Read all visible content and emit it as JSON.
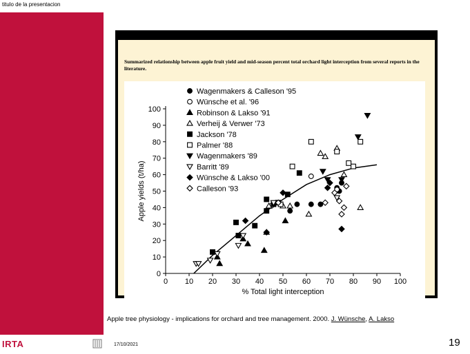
{
  "slide": {
    "header_title": "titulo de la presentacion",
    "brand": "IRTA",
    "date": "17/10/2021",
    "page_number": "19",
    "accent_color": "#c0113c"
  },
  "figure": {
    "caption": "Summarized relationship between apple fruit yield and mid-season percent total orchard light interception from several reports in the literature."
  },
  "citation": {
    "text": "Apple tree physiology - implications for orchard and tree management. 2000.",
    "author1": "J. Wünsche",
    "separator": ",",
    "author2": "A. Lakso"
  },
  "chart_data": {
    "type": "scatter",
    "xlabel": "% Total light interception",
    "ylabel": "Apple yields (t/ha)",
    "xlim": [
      0,
      100
    ],
    "ylim": [
      0,
      100
    ],
    "xticks": [
      0,
      10,
      20,
      30,
      40,
      50,
      60,
      70,
      80,
      90,
      100
    ],
    "yticks": [
      0,
      10,
      20,
      30,
      40,
      50,
      60,
      70,
      80,
      90,
      100
    ],
    "grid": false,
    "legend_position": "top-left",
    "series": [
      {
        "name": "Wagenmakers & Calleson '95",
        "marker": "circle-filled",
        "points": [
          [
            47,
            43
          ],
          [
            53,
            38
          ],
          [
            56,
            42
          ],
          [
            62,
            42
          ],
          [
            66,
            42
          ],
          [
            75,
            55
          ],
          [
            73,
            52
          ],
          [
            74,
            50
          ]
        ]
      },
      {
        "name": "Wünsche et al. '96",
        "marker": "circle-open",
        "points": [
          [
            45,
            41
          ],
          [
            62,
            59
          ],
          [
            73,
            51
          ]
        ]
      },
      {
        "name": "Robinson & Lakso '91",
        "marker": "triangle-filled",
        "points": [
          [
            22,
            10
          ],
          [
            23,
            6
          ],
          [
            33,
            21
          ],
          [
            35,
            18
          ],
          [
            42,
            14
          ],
          [
            43,
            25
          ],
          [
            51,
            32
          ]
        ]
      },
      {
        "name": "Verheij & Verwer '73",
        "marker": "triangle-open",
        "points": [
          [
            44,
            41
          ],
          [
            50,
            41
          ],
          [
            53,
            41
          ],
          [
            61,
            36
          ],
          [
            66,
            73
          ],
          [
            68,
            71
          ],
          [
            73,
            76
          ],
          [
            76,
            60
          ],
          [
            83,
            40
          ]
        ]
      },
      {
        "name": "Jackson '78",
        "marker": "square-filled",
        "points": [
          [
            20,
            13
          ],
          [
            30,
            31
          ],
          [
            31,
            23
          ],
          [
            38,
            29
          ],
          [
            43,
            38
          ],
          [
            43,
            45
          ],
          [
            46,
            42
          ],
          [
            48,
            43
          ],
          [
            52,
            48
          ],
          [
            57,
            61
          ]
        ]
      },
      {
        "name": "Palmer '88",
        "marker": "square-open",
        "points": [
          [
            49,
            42
          ],
          [
            54,
            65
          ],
          [
            62,
            80
          ],
          [
            73,
            74
          ],
          [
            78,
            67
          ],
          [
            80,
            65
          ],
          [
            83,
            80
          ]
        ]
      },
      {
        "name": "Wagenmakers '89",
        "marker": "triangle-down-filled",
        "points": [
          [
            67,
            62
          ],
          [
            69,
            57
          ],
          [
            75,
            57
          ],
          [
            82,
            83
          ],
          [
            86,
            96
          ]
        ]
      },
      {
        "name": "Barritt '89",
        "marker": "triangle-down-open",
        "points": [
          [
            13,
            6
          ],
          [
            14,
            6
          ],
          [
            19,
            8
          ],
          [
            22,
            12
          ],
          [
            31,
            17
          ],
          [
            33,
            23
          ],
          [
            46,
            43
          ],
          [
            73,
            46
          ]
        ]
      },
      {
        "name": "Wünsche & Lakso '00",
        "marker": "diamond-filled",
        "points": [
          [
            34,
            32
          ],
          [
            43,
            25
          ],
          [
            50,
            49
          ],
          [
            69,
            52
          ],
          [
            70,
            55
          ],
          [
            75,
            27
          ]
        ]
      },
      {
        "name": "Calleson '93",
        "marker": "diamond-open",
        "points": [
          [
            48,
            43
          ],
          [
            68,
            43
          ],
          [
            72,
            49
          ],
          [
            74,
            44
          ],
          [
            75,
            36
          ],
          [
            76,
            40
          ],
          [
            77,
            53
          ]
        ]
      }
    ],
    "fit_curve": {
      "type": "line",
      "points": [
        [
          12,
          0
        ],
        [
          20,
          11
        ],
        [
          30,
          23
        ],
        [
          40,
          35
        ],
        [
          50,
          45
        ],
        [
          60,
          54
        ],
        [
          70,
          60
        ],
        [
          80,
          64
        ],
        [
          90,
          66
        ]
      ]
    }
  }
}
